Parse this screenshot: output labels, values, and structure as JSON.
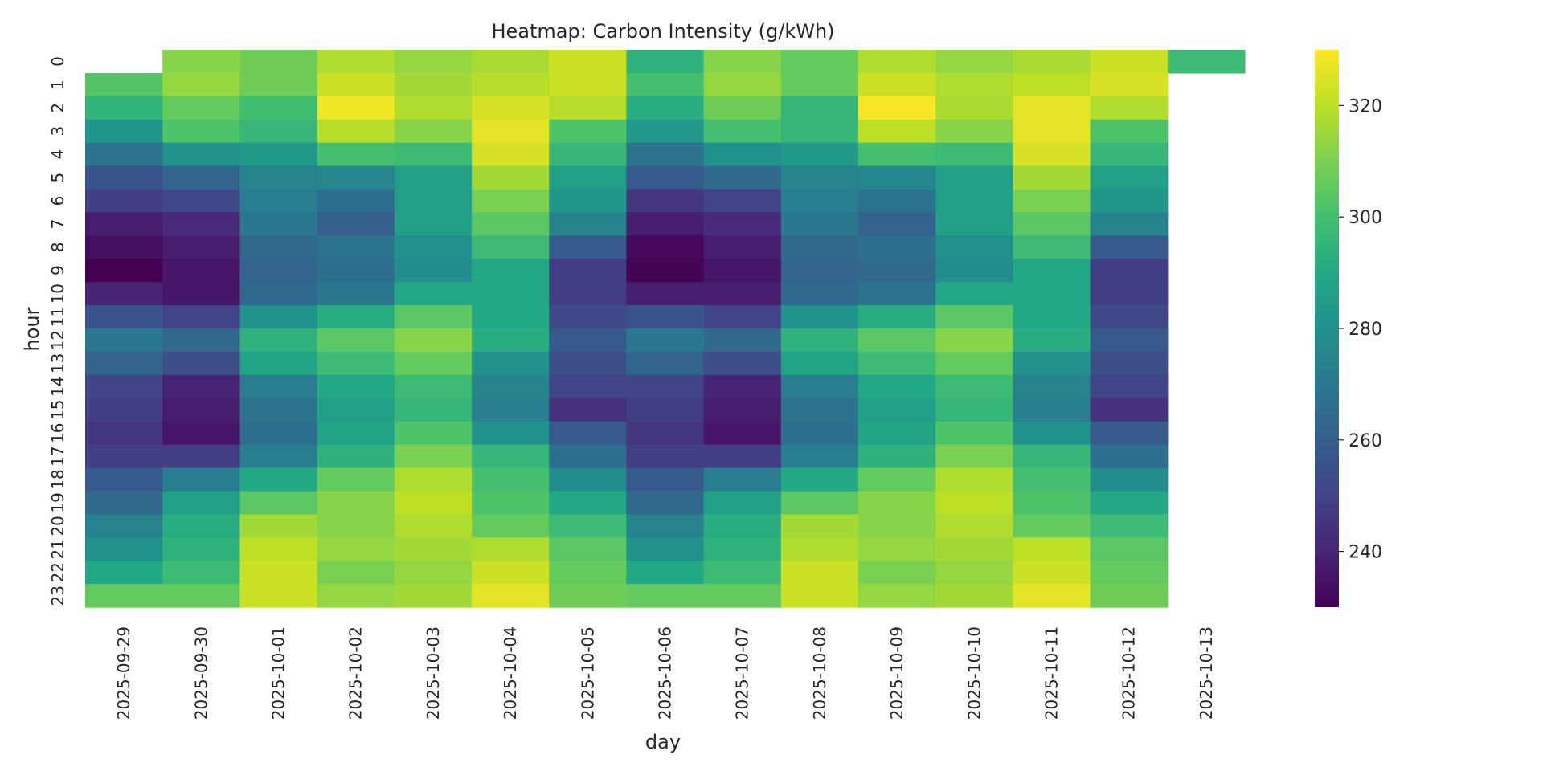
{
  "chart_data": {
    "type": "heatmap",
    "title": "Heatmap: Carbon Intensity (g/kWh)",
    "xlabel": "day",
    "ylabel": "hour",
    "x_categories": [
      "2025-09-29",
      "2025-09-30",
      "2025-10-01",
      "2025-10-02",
      "2025-10-03",
      "2025-10-04",
      "2025-10-05",
      "2025-10-06",
      "2025-10-07",
      "2025-10-08",
      "2025-10-09",
      "2025-10-10",
      "2025-10-11",
      "2025-10-12",
      "2025-10-13"
    ],
    "y_categories": [
      "0",
      "1",
      "2",
      "3",
      "4",
      "5",
      "6",
      "7",
      "8",
      "9",
      "10",
      "11",
      "12",
      "13",
      "14",
      "15",
      "16",
      "17",
      "18",
      "19",
      "20",
      "21",
      "22",
      "23"
    ],
    "y_tick_labels": [
      "0",
      "1",
      "2",
      "3",
      "4",
      "5",
      "6",
      "7",
      "8",
      "9",
      "10",
      "11",
      "12",
      "13",
      "14",
      "15",
      "16",
      "17",
      "18",
      "19",
      "20",
      "21",
      "22",
      "23"
    ],
    "colormap": "viridis",
    "color_range": [
      230,
      330
    ],
    "colorbar_ticks": [
      240,
      260,
      280,
      300,
      320
    ],
    "grid": false,
    "legend": "colorbar-right",
    "values": [
      [
        null,
        312,
        308,
        318,
        314,
        317,
        322,
        294,
        312,
        306,
        318,
        314,
        317,
        322,
        298
      ],
      [
        303,
        314,
        308,
        322,
        316,
        319,
        322,
        300,
        314,
        306,
        322,
        318,
        320,
        324,
        null
      ],
      [
        295,
        306,
        299,
        328,
        318,
        324,
        319,
        292,
        308,
        296,
        329,
        317,
        326,
        318,
        null
      ],
      [
        282,
        302,
        296,
        319,
        312,
        326,
        302,
        283,
        300,
        296,
        320,
        312,
        326,
        302,
        null
      ],
      [
        268,
        280,
        284,
        300,
        298,
        324,
        296,
        268,
        280,
        284,
        300,
        298,
        324,
        296,
        null
      ],
      [
        256,
        262,
        274,
        276,
        286,
        316,
        286,
        258,
        264,
        274,
        276,
        286,
        316,
        286,
        null
      ],
      [
        248,
        252,
        272,
        266,
        286,
        310,
        282,
        246,
        250,
        272,
        268,
        286,
        310,
        282,
        null
      ],
      [
        238,
        242,
        270,
        260,
        286,
        304,
        274,
        238,
        242,
        270,
        262,
        286,
        304,
        274,
        null
      ],
      [
        234,
        238,
        264,
        268,
        280,
        298,
        258,
        232,
        238,
        264,
        266,
        280,
        298,
        258,
        null
      ],
      [
        230,
        236,
        262,
        266,
        278,
        290,
        248,
        231,
        236,
        262,
        264,
        278,
        290,
        248,
        null
      ],
      [
        240,
        236,
        264,
        270,
        290,
        290,
        248,
        238,
        238,
        264,
        268,
        290,
        290,
        248,
        null
      ],
      [
        256,
        250,
        280,
        292,
        304,
        290,
        252,
        256,
        250,
        280,
        292,
        304,
        290,
        252,
        null
      ],
      [
        270,
        264,
        294,
        304,
        312,
        292,
        258,
        270,
        264,
        294,
        304,
        312,
        292,
        258,
        null
      ],
      [
        262,
        254,
        288,
        298,
        306,
        280,
        254,
        262,
        254,
        288,
        298,
        306,
        280,
        254,
        null
      ],
      [
        250,
        240,
        272,
        290,
        298,
        274,
        250,
        250,
        240,
        272,
        290,
        298,
        274,
        250,
        null
      ],
      [
        248,
        238,
        268,
        286,
        296,
        272,
        244,
        248,
        238,
        268,
        286,
        296,
        272,
        244,
        null
      ],
      [
        246,
        236,
        266,
        288,
        302,
        280,
        258,
        246,
        236,
        266,
        288,
        302,
        280,
        258,
        null
      ],
      [
        248,
        248,
        272,
        294,
        310,
        296,
        266,
        248,
        248,
        272,
        294,
        310,
        296,
        266,
        null
      ],
      [
        258,
        272,
        290,
        306,
        318,
        300,
        278,
        258,
        272,
        290,
        306,
        318,
        300,
        278,
        null
      ],
      [
        264,
        286,
        304,
        312,
        320,
        302,
        290,
        264,
        286,
        304,
        312,
        320,
        302,
        290,
        null
      ],
      [
        274,
        292,
        316,
        312,
        318,
        306,
        298,
        274,
        292,
        316,
        312,
        318,
        306,
        298,
        null
      ],
      [
        280,
        294,
        320,
        314,
        316,
        318,
        304,
        280,
        294,
        318,
        314,
        316,
        320,
        304,
        null
      ],
      [
        290,
        298,
        322,
        310,
        314,
        322,
        306,
        290,
        298,
        322,
        310,
        314,
        322,
        306,
        null
      ],
      [
        306,
        306,
        322,
        314,
        316,
        326,
        308,
        306,
        306,
        322,
        314,
        316,
        326,
        308,
        null
      ]
    ]
  }
}
